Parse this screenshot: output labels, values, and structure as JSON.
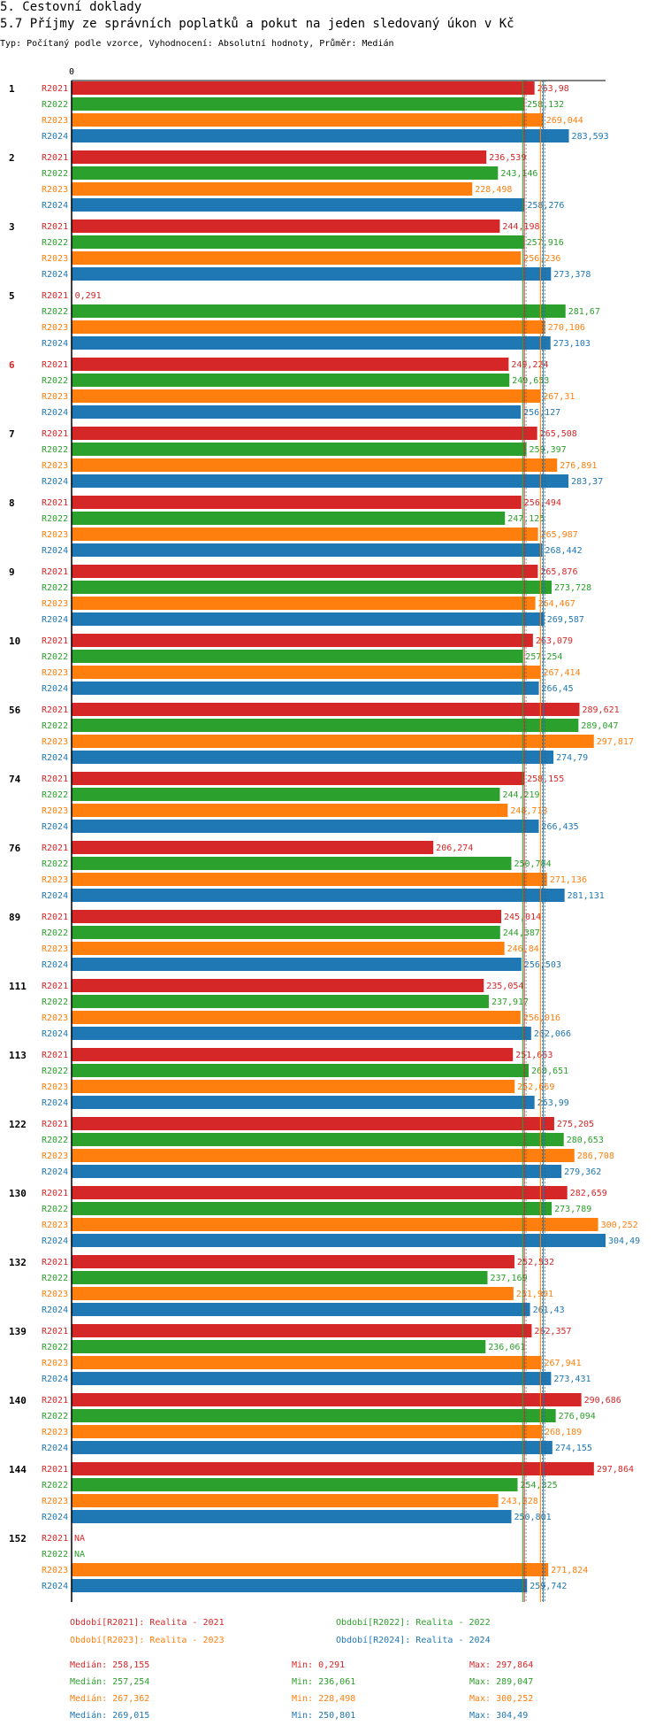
{
  "header": {
    "section": "5. Cestovní doklady",
    "title": "5.7 Příjmy ze správních poplatků a pokut na jeden sledovaný úkon v Kč",
    "subtitle": "Typ: Počítaný podle vzorce, Vyhodnocení: Absolutní hodnoty, Průměr: Medián"
  },
  "colors": {
    "R2021": "#d62728",
    "R2022": "#2ca02c",
    "R2023": "#ff7f0e",
    "R2024": "#1f77b4",
    "highlight_group": "#d62728",
    "axis": "#000000"
  },
  "chart_data": {
    "type": "bar",
    "orientation": "horizontal",
    "axis_zero_label": "0",
    "xlim": [
      0,
      304.49
    ],
    "series_names": [
      "R2021",
      "R2022",
      "R2023",
      "R2024"
    ],
    "highlight_group": "6",
    "groups": [
      {
        "id": "1",
        "values": [
          "263,98",
          "258,132",
          "269,044",
          "283,593"
        ]
      },
      {
        "id": "2",
        "values": [
          "236,539",
          "243,146",
          "228,498",
          "258,276"
        ]
      },
      {
        "id": "3",
        "values": [
          "244,198",
          "257,916",
          "256,236",
          "273,378"
        ]
      },
      {
        "id": "5",
        "values": [
          "0,291",
          "281,67",
          "270,106",
          "273,103"
        ]
      },
      {
        "id": "6",
        "values": [
          "249,224",
          "249,653",
          "267,31",
          "256,127"
        ]
      },
      {
        "id": "7",
        "values": [
          "265,508",
          "259,397",
          "276,891",
          "283,37"
        ]
      },
      {
        "id": "8",
        "values": [
          "256,494",
          "247,125",
          "265,987",
          "268,442"
        ]
      },
      {
        "id": "9",
        "values": [
          "265,876",
          "273,728",
          "264,467",
          "269,587"
        ]
      },
      {
        "id": "10",
        "values": [
          "263,079",
          "257,254",
          "267,414",
          "266,45"
        ]
      },
      {
        "id": "56",
        "values": [
          "289,621",
          "289,047",
          "297,817",
          "274,79"
        ]
      },
      {
        "id": "74",
        "values": [
          "258,155",
          "244,219",
          "248,713",
          "266,435"
        ]
      },
      {
        "id": "76",
        "values": [
          "206,274",
          "250,784",
          "271,136",
          "281,131"
        ]
      },
      {
        "id": "89",
        "values": [
          "245,014",
          "244,387",
          "246,84",
          "256,503"
        ]
      },
      {
        "id": "111",
        "values": [
          "235,054",
          "237,917",
          "256,016",
          "262,066"
        ]
      },
      {
        "id": "113",
        "values": [
          "251,663",
          "260,651",
          "252,669",
          "263,99"
        ]
      },
      {
        "id": "122",
        "values": [
          "275,205",
          "280,653",
          "286,708",
          "279,362"
        ]
      },
      {
        "id": "130",
        "values": [
          "282,659",
          "273,789",
          "300,252",
          "304,49"
        ]
      },
      {
        "id": "132",
        "values": [
          "252,532",
          "237,169",
          "251,991",
          "261,43"
        ]
      },
      {
        "id": "139",
        "values": [
          "262,357",
          "236,061",
          "267,941",
          "273,431"
        ]
      },
      {
        "id": "140",
        "values": [
          "290,686",
          "276,094",
          "268,189",
          "274,155"
        ]
      },
      {
        "id": "144",
        "values": [
          "297,864",
          "254,325",
          "243,328",
          "250,801"
        ]
      },
      {
        "id": "152",
        "values": [
          "NA",
          "NA",
          "271,824",
          "259,742"
        ]
      }
    ],
    "median_lines": [
      {
        "series": "R2021",
        "value": 258.155
      },
      {
        "series": "R2022",
        "value": 257.254
      },
      {
        "series": "R2023",
        "value": 267.362
      },
      {
        "series": "R2024",
        "value": 269.015
      }
    ],
    "legend": [
      "Období[R2021]: Realita - 2021",
      "Období[R2022]: Realita - 2022",
      "Období[R2023]: Realita - 2023",
      "Období[R2024]: Realita - 2024"
    ],
    "stats": [
      {
        "median": "Medián: 258,155",
        "min": "Min: 0,291",
        "max": "Max: 297,864"
      },
      {
        "median": "Medián: 257,254",
        "min": "Min: 236,061",
        "max": "Max: 289,047"
      },
      {
        "median": "Medián: 267,362",
        "min": "Min: 228,498",
        "max": "Max: 300,252"
      },
      {
        "median": "Medián: 269,015",
        "min": "Min: 250,801",
        "max": "Max: 304,49"
      }
    ]
  }
}
